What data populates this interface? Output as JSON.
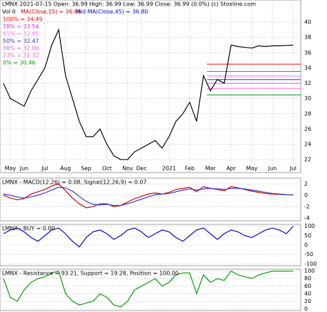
{
  "chart_data": [
    {
      "type": "line",
      "title": "LMNX 2021-07-15 Open: 36.99 High: 36.99 Low: 36.99 Close: 36.99 (0.0%) (c) Stoxline.com",
      "legend": [
        "Vol 0",
        "MA(Close,15) = 36.86",
        "Mid MA(Close,45) = 36.80"
      ],
      "fib_levels": [
        {
          "label": "100% = 34.49",
          "value": 34.49,
          "color": "#ff0000"
        },
        {
          "label": "78% = 33.54",
          "value": 33.54,
          "color": "#cc33cc"
        },
        {
          "label": "61% = 32.95",
          "value": 32.95,
          "color": "#ff66ff"
        },
        {
          "label": "50% = 32.47",
          "value": 32.47,
          "color": "#3333cc"
        },
        {
          "label": "38% = 32.00",
          "value": 32.0,
          "color": "#cc66cc"
        },
        {
          "label": "23% = 31.32",
          "value": 31.32,
          "color": "#ff66cc"
        },
        {
          "label": "0% = 30.46",
          "value": 30.46,
          "color": "#009900"
        }
      ],
      "categories": [
        null,
        "May",
        null,
        "Jun",
        null,
        null,
        "Jul",
        null,
        null,
        "Aug",
        null,
        null,
        "Sep",
        null,
        null,
        "Oct",
        null,
        null,
        "Nov",
        null,
        "Dec",
        null,
        null,
        null,
        "2021",
        null,
        null,
        "Feb",
        null,
        null,
        "Mar",
        null,
        null,
        "Apr",
        null,
        null,
        "May",
        null,
        null,
        "Jun",
        null,
        null,
        "Jul"
      ],
      "series": [
        {
          "color": "#000000",
          "values": [
            32,
            30,
            29.5,
            29,
            31,
            32.5,
            34,
            37,
            39,
            33,
            30,
            27,
            25,
            25,
            26,
            24,
            22.5,
            22,
            22,
            23,
            23.5,
            24,
            24.5,
            23.5,
            25,
            27,
            28,
            29.5,
            27,
            33,
            31,
            32.5,
            32,
            37,
            36.8,
            36.7,
            36.6,
            36.9,
            36.8,
            36.9,
            36.9,
            36.95,
            36.99
          ]
        }
      ],
      "ylim": [
        20.3,
        42.9
      ],
      "yticks": [
        22,
        24,
        26,
        28,
        30,
        32,
        34,
        36,
        38,
        40
      ],
      "grid": true
    },
    {
      "type": "line",
      "title": "LMNX - MACD(12,26) = 0.08, Signal(12,26,9) = 0.07",
      "series": [
        {
          "color": "#cc0000",
          "values": [
            0,
            -0.5,
            -0.8,
            -0.6,
            0.2,
            0.6,
            1,
            1.6,
            2,
            0.8,
            -0.5,
            -1.5,
            -2.2,
            -2,
            -1.5,
            -1.5,
            -2,
            -1.8,
            -1.2,
            -0.6,
            -0.2,
            0.2,
            0.4,
            0.2,
            0.5,
            1,
            1.2,
            1.4,
            0.6,
            1.5,
            1.2,
            1,
            0.8,
            1.5,
            1.3,
            1,
            0.7,
            0.5,
            0.3,
            0.2,
            0.15,
            0.1,
            0.08
          ]
        },
        {
          "color": "#3333cc",
          "values": [
            0.2,
            0,
            -0.3,
            -0.5,
            -0.3,
            0,
            0.4,
            0.9,
            1.4,
            1.3,
            0.7,
            -0.2,
            -1.1,
            -1.6,
            -1.7,
            -1.6,
            -1.8,
            -1.8,
            -1.5,
            -1.1,
            -0.7,
            -0.3,
            0.1,
            0.2,
            0.3,
            0.6,
            0.9,
            1.1,
            0.9,
            1.1,
            1.2,
            1.1,
            1,
            1.2,
            1.2,
            1.1,
            0.9,
            0.7,
            0.5,
            0.3,
            0.2,
            0.1,
            0.07
          ]
        }
      ],
      "ylim": [
        -4.5,
        3
      ],
      "yticks": [
        2,
        0,
        -2,
        -4
      ],
      "grid": true
    },
    {
      "type": "line",
      "title": "LMNX - BUY = 0.00",
      "series": [
        {
          "color": "#0000cc",
          "values": [
            60,
            80,
            90,
            70,
            40,
            20,
            50,
            80,
            90,
            60,
            20,
            -10,
            40,
            70,
            80,
            60,
            30,
            50,
            80,
            90,
            70,
            40,
            60,
            80,
            70,
            40,
            20,
            50,
            80,
            90,
            60,
            30,
            60,
            80,
            70,
            50,
            40,
            60,
            80,
            90,
            80,
            60,
            100
          ]
        }
      ],
      "ylim": [
        -110,
        110
      ],
      "yticks": [
        100,
        50,
        0,
        -50,
        -100
      ],
      "grid": true
    },
    {
      "type": "line",
      "title": "LMNX - Resistance = 93.21, Support = 19.28, Position = 100.00",
      "series": [
        {
          "color": "#009900",
          "values": [
            80,
            30,
            20,
            50,
            70,
            80,
            85,
            95,
            100,
            40,
            20,
            10,
            15,
            20,
            40,
            30,
            10,
            5,
            20,
            50,
            60,
            70,
            80,
            60,
            70,
            90,
            95,
            95,
            40,
            90,
            70,
            80,
            75,
            100,
            90,
            85,
            80,
            90,
            95,
            100,
            100,
            100,
            100
          ]
        }
      ],
      "ylim": [
        -5,
        105
      ],
      "yticks": [
        100,
        80,
        60,
        40,
        20,
        0
      ],
      "grid": true
    }
  ]
}
